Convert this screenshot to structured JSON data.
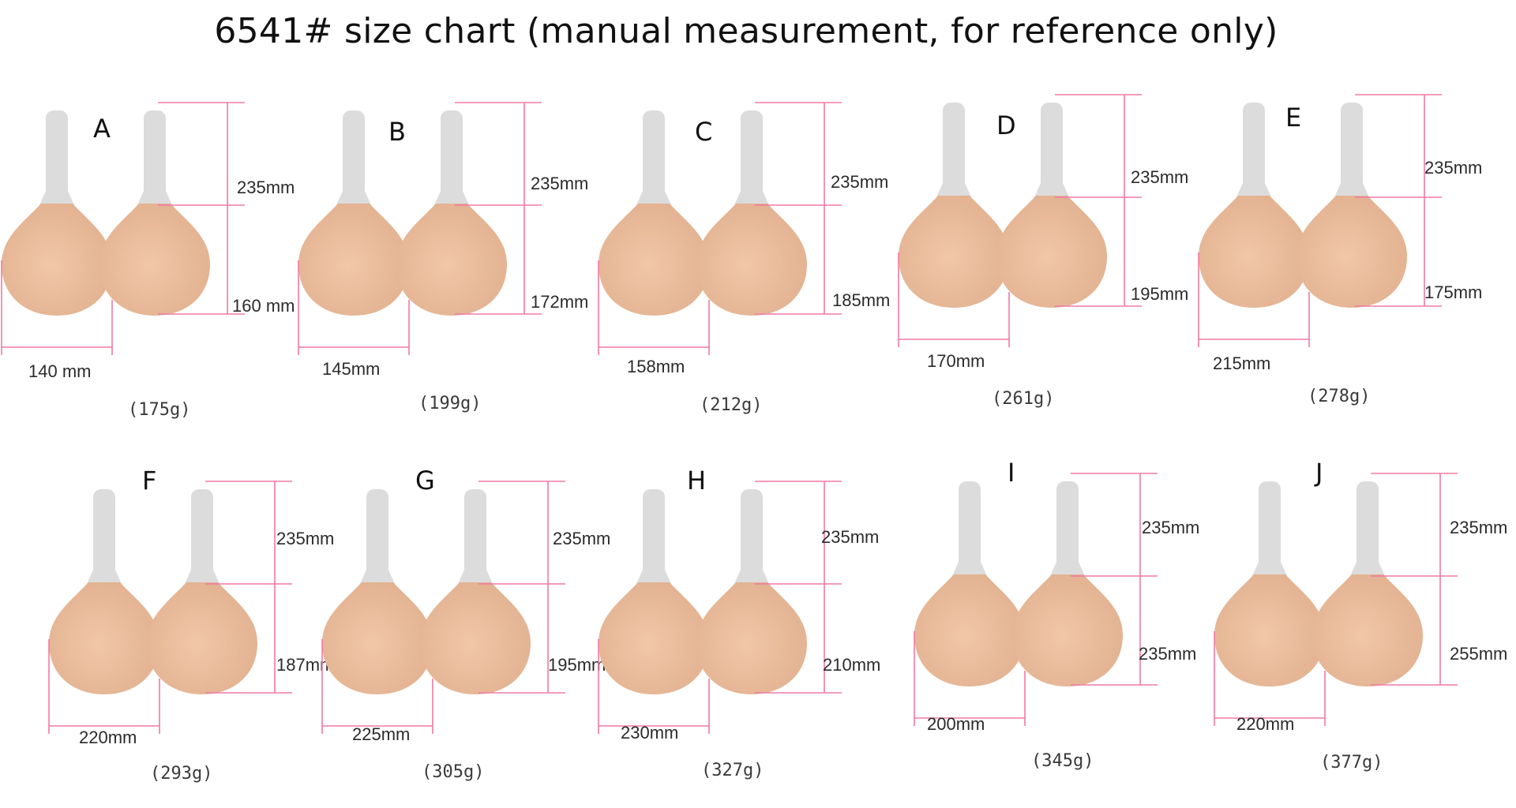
{
  "title": "6541# size chart (manual measurement, for reference only)",
  "colors": {
    "pink_line": "#f07aa5",
    "silicone": "#e2b190",
    "strap": "#dcdcdc"
  },
  "sizes": [
    {
      "size": "A",
      "strap_length": "235mm",
      "cup_height": "160 mm",
      "width": "140 mm",
      "weight": "(175g)"
    },
    {
      "size": "B",
      "strap_length": "235mm",
      "cup_height": "172mm",
      "width": "145mm",
      "weight": "(199g)"
    },
    {
      "size": "C",
      "strap_length": "235mm",
      "cup_height": "185mm",
      "width": "158mm",
      "weight": "(212g)"
    },
    {
      "size": "D",
      "strap_length": "235mm",
      "cup_height": "195mm",
      "width": "170mm",
      "weight": "(261g)"
    },
    {
      "size": "E",
      "strap_length": "235mm",
      "cup_height": "175mm",
      "width": "215mm",
      "weight": "(278g)"
    },
    {
      "size": "F",
      "strap_length": "235mm",
      "cup_height": "187mm",
      "width": "220mm",
      "weight": "(293g)"
    },
    {
      "size": "G",
      "strap_length": "235mm",
      "cup_height": "195mm",
      "width": "225mm",
      "weight": "(305g)"
    },
    {
      "size": "H",
      "strap_length": "235mm",
      "cup_height": "210mm",
      "width": "230mm",
      "weight": "(327g)"
    },
    {
      "size": "I",
      "strap_length": "235mm",
      "cup_height": "235mm",
      "width": "200mm",
      "weight": "(345g)"
    },
    {
      "size": "J",
      "strap_length": "235mm",
      "cup_height": "255mm",
      "width": "220mm",
      "weight": "(377g)"
    }
  ]
}
